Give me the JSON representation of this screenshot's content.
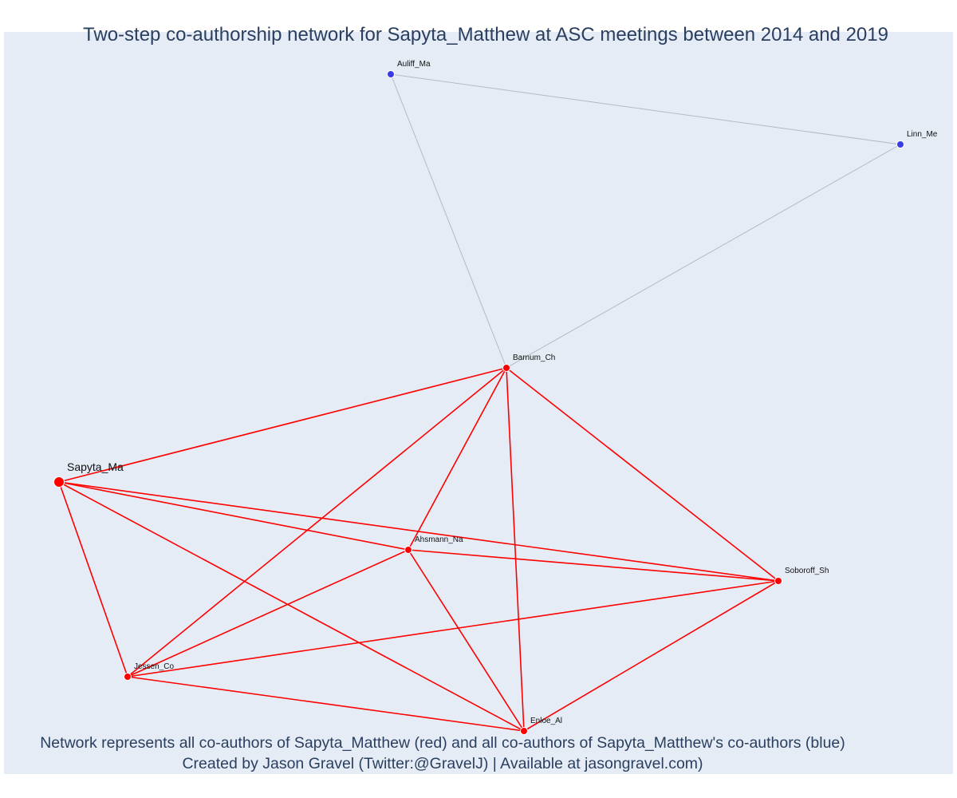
{
  "title": "Two-step co-authorship network for Sapyta_Matthew at ASC meetings between 2014 and 2019",
  "caption": {
    "line1": "Network represents all co-authors of Sapyta_Matthew (red) and all co-authors of Sapyta_Matthew's co-authors (blue)",
    "line2": "Created by Jason Gravel (Twitter:@GravelJ) | Available at jasongravel.com)"
  },
  "colors": {
    "coauthor": "#ff0000",
    "second_step": "#3a3ae6",
    "coauthor_edge": "#ff0000",
    "second_step_edge": "#b4b8c8",
    "background": "#e5ecf6"
  },
  "nodes": [
    {
      "id": "Sapyta_Ma",
      "label": "Sapyta_Ma",
      "group": "focal"
    },
    {
      "id": "Barnum_Ch",
      "label": "Barnum_Ch",
      "group": "coauthor"
    },
    {
      "id": "Ahsmann_Na",
      "label": "Ahsmann_Na",
      "group": "coauthor"
    },
    {
      "id": "Soboroff_Sh",
      "label": "Soboroff_Sh",
      "group": "coauthor"
    },
    {
      "id": "Jessen_Co",
      "label": "Jessen_Co",
      "group": "coauthor"
    },
    {
      "id": "Enloe_Al",
      "label": "Enloe_Al",
      "group": "coauthor"
    },
    {
      "id": "Auliff_Ma",
      "label": "Auliff_Ma",
      "group": "second_step"
    },
    {
      "id": "Linn_Me",
      "label": "Linn_Me",
      "group": "second_step"
    }
  ],
  "edges": [
    {
      "source": "Auliff_Ma",
      "target": "Linn_Me",
      "type": "second_step"
    },
    {
      "source": "Auliff_Ma",
      "target": "Barnum_Ch",
      "type": "second_step"
    },
    {
      "source": "Linn_Me",
      "target": "Barnum_Ch",
      "type": "second_step"
    },
    {
      "source": "Sapyta_Ma",
      "target": "Barnum_Ch",
      "type": "coauthor"
    },
    {
      "source": "Sapyta_Ma",
      "target": "Ahsmann_Na",
      "type": "coauthor"
    },
    {
      "source": "Sapyta_Ma",
      "target": "Soboroff_Sh",
      "type": "coauthor"
    },
    {
      "source": "Sapyta_Ma",
      "target": "Jessen_Co",
      "type": "coauthor"
    },
    {
      "source": "Sapyta_Ma",
      "target": "Enloe_Al",
      "type": "coauthor"
    },
    {
      "source": "Barnum_Ch",
      "target": "Ahsmann_Na",
      "type": "coauthor"
    },
    {
      "source": "Barnum_Ch",
      "target": "Jessen_Co",
      "type": "coauthor"
    },
    {
      "source": "Barnum_Ch",
      "target": "Enloe_Al",
      "type": "coauthor"
    },
    {
      "source": "Barnum_Ch",
      "target": "Soboroff_Sh",
      "type": "coauthor"
    },
    {
      "source": "Ahsmann_Na",
      "target": "Soboroff_Sh",
      "type": "coauthor"
    },
    {
      "source": "Ahsmann_Na",
      "target": "Jessen_Co",
      "type": "coauthor"
    },
    {
      "source": "Ahsmann_Na",
      "target": "Enloe_Al",
      "type": "coauthor"
    },
    {
      "source": "Jessen_Co",
      "target": "Soboroff_Sh",
      "type": "coauthor"
    },
    {
      "source": "Jessen_Co",
      "target": "Enloe_Al",
      "type": "coauthor"
    },
    {
      "source": "Enloe_Al",
      "target": "Soboroff_Sh",
      "type": "coauthor"
    }
  ]
}
